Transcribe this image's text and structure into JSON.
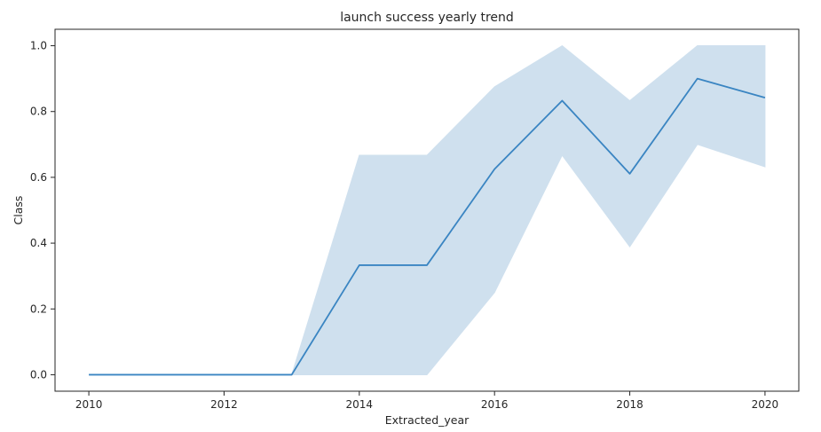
{
  "chart_data": {
    "type": "line",
    "title": "launch success yearly trend",
    "xlabel": "Extracted_year",
    "ylabel": "Class",
    "xlim": [
      2009.5,
      2020.5
    ],
    "ylim": [
      -0.05,
      1.05
    ],
    "x_ticks": [
      2010,
      2012,
      2014,
      2016,
      2018,
      2020
    ],
    "x_tick_labels": [
      "2010",
      "2012",
      "2014",
      "2016",
      "2018",
      "2020"
    ],
    "y_ticks": [
      0.0,
      0.2,
      0.4,
      0.6,
      0.8,
      1.0
    ],
    "y_tick_labels": [
      "0.0",
      "0.2",
      "0.4",
      "0.6",
      "0.8",
      "1.0"
    ],
    "grid": false,
    "series": [
      {
        "x": [
          2010,
          2012,
          2013,
          2014,
          2015,
          2016,
          2017,
          2018,
          2019,
          2020
        ],
        "values": [
          0.0,
          0.0,
          0.0,
          0.333,
          0.333,
          0.625,
          0.833,
          0.611,
          0.9,
          0.842
        ],
        "ci_lower": [
          0.0,
          0.0,
          0.0,
          0.0,
          0.0,
          0.25,
          0.667,
          0.389,
          0.7,
          0.632
        ],
        "ci_upper": [
          0.0,
          0.0,
          0.0,
          0.667,
          0.667,
          0.875,
          1.0,
          0.833,
          1.0,
          1.0
        ],
        "color": "#3a85c2",
        "band_color": "#cfe0ee"
      }
    ]
  }
}
